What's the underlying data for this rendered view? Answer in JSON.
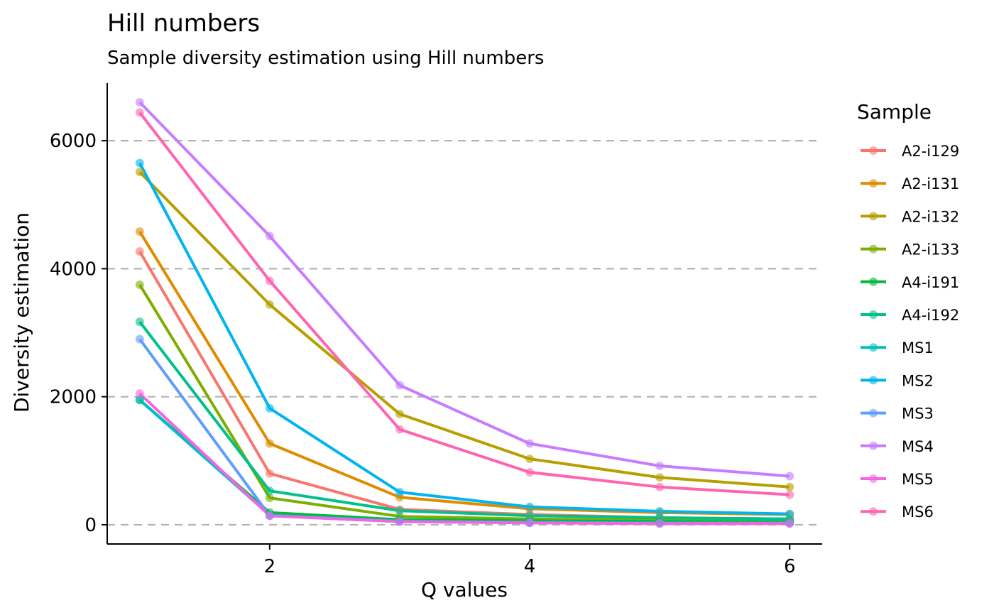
{
  "chart_data": {
    "type": "line",
    "title": "Hill numbers",
    "subtitle": "Sample diversity estimation using Hill numbers",
    "xlabel": "Q values",
    "ylabel": "Diversity estimation",
    "x": [
      1,
      2,
      3,
      4,
      5,
      6
    ],
    "xlim": [
      0.75,
      6.25
    ],
    "ylim": [
      -300,
      6900
    ],
    "xticks": [
      2,
      4,
      6
    ],
    "yticks": [
      0,
      2000,
      4000,
      6000
    ],
    "grid": "horizontal dashed",
    "legend": {
      "title": "Sample",
      "position": "right"
    },
    "series": [
      {
        "name": "A2-i129",
        "color": "#F8766D",
        "values": [
          4270,
          800,
          240,
          160,
          110,
          90
        ]
      },
      {
        "name": "A2-i131",
        "color": "#DE8C00",
        "values": [
          4580,
          1270,
          430,
          250,
          190,
          160
        ]
      },
      {
        "name": "A2-i132",
        "color": "#B79F00",
        "values": [
          5510,
          3440,
          1730,
          1030,
          740,
          590
        ]
      },
      {
        "name": "A2-i133",
        "color": "#7CAE00",
        "values": [
          3750,
          420,
          130,
          90,
          70,
          60
        ]
      },
      {
        "name": "A4-i191",
        "color": "#00BA38",
        "values": [
          1950,
          190,
          80,
          60,
          50,
          40
        ]
      },
      {
        "name": "A4-i192",
        "color": "#00C08B",
        "values": [
          3170,
          530,
          220,
          140,
          110,
          90
        ]
      },
      {
        "name": "MS1",
        "color": "#00BFC4",
        "values": [
          1950,
          150,
          60,
          40,
          30,
          30
        ]
      },
      {
        "name": "MS2",
        "color": "#00B4F0",
        "values": [
          5650,
          1820,
          510,
          280,
          210,
          170
        ]
      },
      {
        "name": "MS3",
        "color": "#619CFF",
        "values": [
          2900,
          140,
          50,
          30,
          20,
          20
        ]
      },
      {
        "name": "MS4",
        "color": "#C77CFF",
        "values": [
          6600,
          4510,
          2180,
          1270,
          920,
          760
        ]
      },
      {
        "name": "MS5",
        "color": "#F564E3",
        "values": [
          2050,
          140,
          50,
          30,
          20,
          20
        ]
      },
      {
        "name": "MS6",
        "color": "#FF64B0",
        "values": [
          6440,
          3810,
          1490,
          820,
          590,
          470
        ]
      }
    ]
  }
}
